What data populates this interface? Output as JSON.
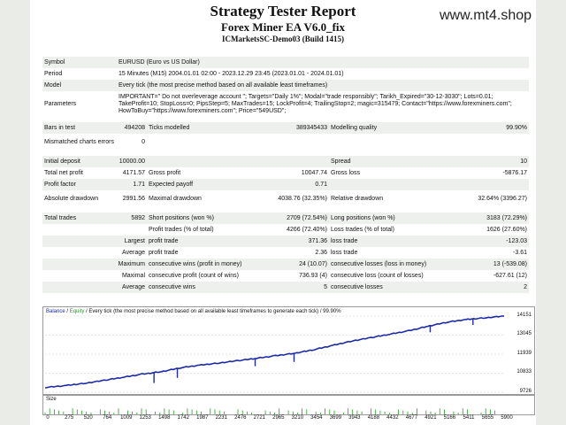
{
  "watermark": "www.mt4.shop",
  "header": {
    "title": "Strategy Tester Report",
    "subtitle": "Forex Miner EA V6.0_fix",
    "server": "ICMarketsSC-Demo03 (Build 1415)"
  },
  "info": {
    "symbol_label": "Symbol",
    "symbol": "EURUSD (Euro vs US Dollar)",
    "period_label": "Period",
    "period": "15 Minutes (M15) 2004.01.01 02:00 - 2023.12.29 23:45 (2023.01.01 - 2024.01.01)",
    "model_label": "Model",
    "model": "Every tick (the most precise method based on all available least timeframes)",
    "parameters_label": "Parameters",
    "parameters": "IMPORTANT=\" Do not overleverage account \"; Targets=\"Daily 1%\"; Modal=\"trade responsibly\"; Tarikh_Expired=\"30-12-3030\"; Lots=0.01; TakeProfit=10; StopLoss=0; PipsStep=5; MaxTrades=15; LockProfit=4; TrailingStop=2; magic=315479; Contact=\"https://www.forexminers.com\"; HowToBuy=\"https://www.forexminers.com\"; Price=\"549USD\";"
  },
  "stats": {
    "bars_label": "Bars in test",
    "bars": "494208",
    "ticks_label": "Ticks modelled",
    "ticks": "389345433",
    "quality_label": "Modelling quality",
    "quality": "99.90%",
    "mismatch_label": "Mismatched charts errors",
    "mismatch": "0",
    "deposit_label": "Initial deposit",
    "deposit": "10000.00",
    "spread_label": "Spread",
    "spread": "10",
    "netprofit_label": "Total net profit",
    "netprofit": "4171.57",
    "grossprofit_label": "Gross profit",
    "grossprofit": "10047.74",
    "grossloss_label": "Gross loss",
    "grossloss": "-5876.17",
    "pf_label": "Profit factor",
    "pf": "1.71",
    "payoff_label": "Expected payoff",
    "payoff": "0.71",
    "absdd_label": "Absolute drawdown",
    "absdd": "2991.56",
    "maxdd_label": "Maximal drawdown",
    "maxdd": "4038.76 (32.35%)",
    "reldd_label": "Relative drawdown",
    "reldd": "32.64% (3396.27)",
    "trades_label": "Total trades",
    "trades": "5892",
    "short_label": "Short positions (won %)",
    "short": "2709 (72.54%)",
    "long_label": "Long positions (won %)",
    "long": "3183 (72.29%)",
    "profit_trades_label": "Profit trades (% of total)",
    "profit_trades": "4266 (72.40%)",
    "loss_trades_label": "Loss trades (% of total)",
    "loss_trades": "1626 (27.60%)",
    "largest_label": "Largest",
    "largest_pt_label": "profit trade",
    "largest_pt": "371.36",
    "largest_lt_label": "loss trade",
    "largest_lt": "-123.03",
    "average_label": "Average",
    "average_pt_label": "profit trade",
    "average_pt": "2.36",
    "average_lt_label": "loss trade",
    "average_lt": "-3.61",
    "maximum_label": "Maximum",
    "max_cw_label": "consecutive wins (profit in money)",
    "max_cw": "24 (10.07)",
    "max_cl_label": "consecutive losses (loss in money)",
    "max_cl": "13 (-539.08)",
    "maximal_label": "Maximal",
    "mxl_cp_label": "consecutive profit (count of wins)",
    "mxl_cp": "736.93 (4)",
    "mxl_cl_label": "consecutive loss (count of losses)",
    "mxl_cl": "-627.61 (12)",
    "avg2_label": "Average",
    "avg_cw_label": "consecutive wins",
    "avg_cw": "5",
    "avg_cl_label": "consecutive losses",
    "avg_cl": "2"
  },
  "chart_text": {
    "balance": "Balance",
    "sep": " / ",
    "equity": "Equity",
    "desc": " / Every tick (the most precise method based on all available least timeframes to generate each tick) / 99.90%",
    "size_label": "Size"
  },
  "colors": {
    "balance": "#1c2aa8",
    "equity": "#22a022",
    "grid": "#cfcfcf"
  },
  "chart_data": {
    "type": "line",
    "title": "",
    "y_ticks": [
      "14151",
      "13045",
      "11939",
      "10833",
      "9726"
    ],
    "ylim": [
      9726,
      14151
    ],
    "x_ticks": [
      "0",
      "275",
      "520",
      "764",
      "1009",
      "1253",
      "1498",
      "1742",
      "1987",
      "2231",
      "2476",
      "2721",
      "2965",
      "3210",
      "3454",
      "3699",
      "3943",
      "4188",
      "4432",
      "4677",
      "4921",
      "5166",
      "5411",
      "5655",
      "5900"
    ],
    "xlim": [
      0,
      5900
    ],
    "series": [
      {
        "name": "Balance",
        "x": [
          0,
          275,
          520,
          764,
          1009,
          1253,
          1498,
          1742,
          1987,
          2231,
          2476,
          2721,
          2965,
          3210,
          3454,
          3699,
          3943,
          4188,
          4432,
          4677,
          4921,
          5166,
          5411,
          5655,
          5900
        ],
        "values": [
          10000,
          10120,
          10250,
          10420,
          10600,
          10780,
          10920,
          11150,
          11300,
          11420,
          11560,
          11700,
          11850,
          11990,
          12200,
          12450,
          12700,
          12900,
          13100,
          13300,
          13560,
          13800,
          13950,
          14050,
          14151
        ]
      }
    ]
  }
}
